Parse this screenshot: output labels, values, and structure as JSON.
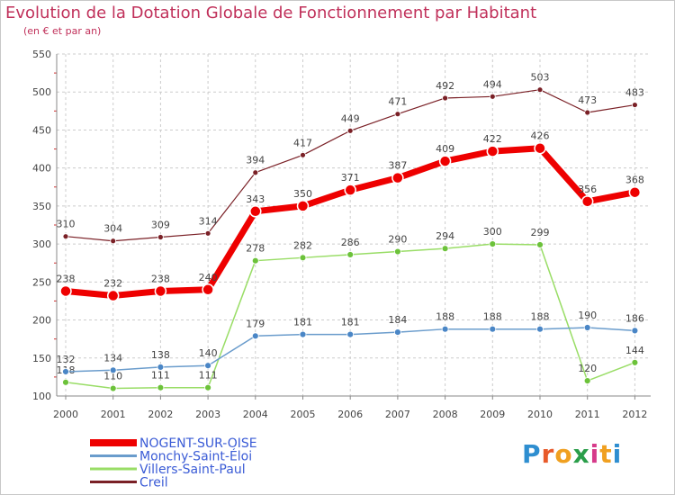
{
  "chart_data": {
    "type": "line",
    "title": "Evolution de la Dotation Globale de Fonctionnement par Habitant",
    "subtitle": "(en € et par an)",
    "xlabel": "",
    "ylabel": "",
    "x": [
      "2000",
      "2001",
      "2002",
      "2003",
      "2004",
      "2005",
      "2006",
      "2007",
      "2008",
      "2009",
      "2010",
      "2011",
      "2012"
    ],
    "ylim": [
      100,
      550
    ],
    "yticks": [
      100,
      150,
      200,
      250,
      300,
      350,
      400,
      450,
      500,
      550
    ],
    "series": [
      {
        "name": "Creil",
        "color": "#7a2026",
        "values": [
          310,
          304,
          309,
          314,
          394,
          417,
          449,
          471,
          492,
          494,
          503,
          473,
          483
        ]
      },
      {
        "name": "Villers-Saint-Paul",
        "color": "#99dd66",
        "marker": "#6cc23a",
        "values": [
          118,
          110,
          111,
          111,
          278,
          282,
          286,
          290,
          294,
          300,
          299,
          120,
          144
        ]
      },
      {
        "name": "Monchy-Saint-Éloi",
        "color": "#6a9ccc",
        "marker": "#4a86c6",
        "values": [
          132,
          134,
          138,
          140,
          179,
          181,
          181,
          184,
          188,
          188,
          188,
          190,
          186
        ]
      },
      {
        "name": "NOGENT-SUR-OISE",
        "color": "#ee0000",
        "values": [
          238,
          232,
          238,
          240,
          343,
          350,
          371,
          387,
          409,
          422,
          426,
          356,
          368
        ]
      }
    ],
    "legend": [
      "NOGENT-SUR-OISE",
      "Monchy-Saint-Éloi",
      "Villers-Saint-Paul",
      "Creil"
    ],
    "legend_position": "bottom-left",
    "grid": true
  },
  "branding": {
    "logo_letters": [
      {
        "char": "P",
        "color": "#2e8ed0"
      },
      {
        "char": "r",
        "color": "#e85a2a"
      },
      {
        "char": "o",
        "color": "#f0a020"
      },
      {
        "char": "x",
        "color": "#2a9e4a"
      },
      {
        "char": "i",
        "color": "#d63a8a"
      },
      {
        "char": "t",
        "color": "#f0a020"
      },
      {
        "char": "i",
        "color": "#2e8ed0"
      }
    ]
  }
}
